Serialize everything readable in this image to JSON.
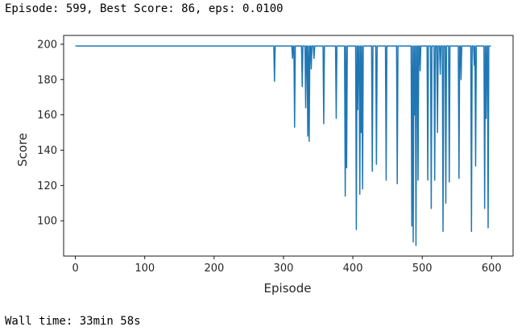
{
  "output": {
    "status_line": "Episode: 599, Best Score: 86, eps: 0.0100",
    "wall_time": "Wall time: 33min 58s"
  },
  "chart_data": {
    "type": "line",
    "title": "",
    "xlabel": "Episode",
    "ylabel": "Score",
    "xlim": [
      -17,
      631
    ],
    "ylim": [
      80,
      205
    ],
    "xticks": [
      0,
      100,
      200,
      300,
      400,
      500,
      600
    ],
    "yticks": [
      100,
      120,
      140,
      160,
      180,
      200
    ],
    "grid": false,
    "line_color": "#1f77b4",
    "baseline": 199,
    "series": [
      {
        "dips": [
          [
            287,
            179
          ],
          [
            313,
            192
          ],
          [
            316,
            153
          ],
          [
            327,
            176
          ],
          [
            332,
            164
          ],
          [
            335,
            148
          ],
          [
            337,
            145
          ],
          [
            340,
            186
          ],
          [
            344,
            192
          ],
          [
            358,
            155
          ],
          [
            376,
            158
          ],
          [
            389,
            114
          ],
          [
            391,
            130
          ],
          [
            405,
            95
          ],
          [
            407,
            163
          ],
          [
            410,
            115
          ],
          [
            412,
            150
          ],
          [
            414,
            118
          ],
          [
            428,
            128
          ],
          [
            434,
            132
          ],
          [
            448,
            123
          ],
          [
            464,
            121
          ],
          [
            485,
            97
          ],
          [
            487,
            88
          ],
          [
            489,
            160
          ],
          [
            491,
            86
          ],
          [
            494,
            123
          ],
          [
            497,
            185
          ],
          [
            508,
            123
          ],
          [
            513,
            107
          ],
          [
            518,
            123
          ],
          [
            522,
            150
          ],
          [
            526,
            183
          ],
          [
            530,
            94
          ],
          [
            534,
            110
          ],
          [
            539,
            122
          ],
          [
            553,
            124
          ],
          [
            556,
            180
          ],
          [
            571,
            94
          ],
          [
            575,
            188
          ],
          [
            577,
            131
          ],
          [
            590,
            107
          ],
          [
            592,
            158
          ],
          [
            595,
            96
          ]
        ]
      }
    ]
  }
}
